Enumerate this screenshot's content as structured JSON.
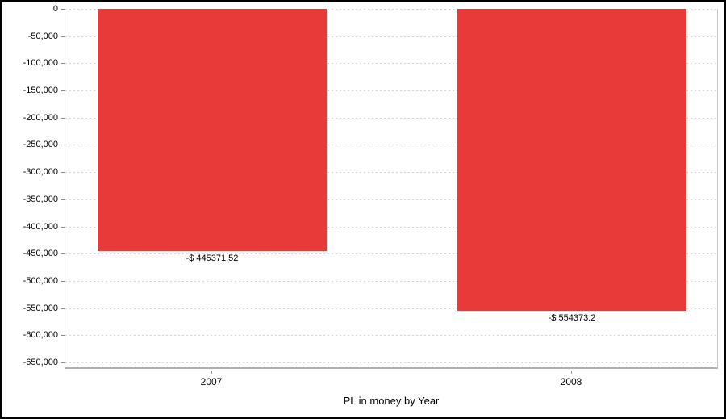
{
  "window": {
    "background": "#ffffff",
    "frame_color": "#000000"
  },
  "chart_data": {
    "type": "bar",
    "title": "",
    "xlabel": "PL in money by Year",
    "ylabel": "",
    "categories": [
      "2007",
      "2008"
    ],
    "values": [
      -445371.52,
      -554373.2
    ],
    "value_labels": [
      "-$ 445371.52",
      "-$ 554373.2"
    ],
    "bar_color": "#e93a3a",
    "ylim": [
      -650000,
      0
    ],
    "ytick_step": 50000,
    "yticks": [
      0,
      -50000,
      -100000,
      -150000,
      -200000,
      -250000,
      -300000,
      -350000,
      -400000,
      -450000,
      -500000,
      -550000,
      -600000,
      -650000
    ],
    "ytick_labels": [
      "0",
      "-50,000",
      "-100,000",
      "-150,000",
      "-200,000",
      "-250,000",
      "-300,000",
      "-350,000",
      "-400,000",
      "-450,000",
      "-500,000",
      "-550,000",
      "-600,000",
      "-650,000"
    ],
    "grid": {
      "horizontal": true,
      "vertical": false,
      "style": "dashed",
      "color": "#d6d6d6"
    },
    "legend": "none",
    "axis_color": "#b0b0b0",
    "text_color": "#000000"
  }
}
